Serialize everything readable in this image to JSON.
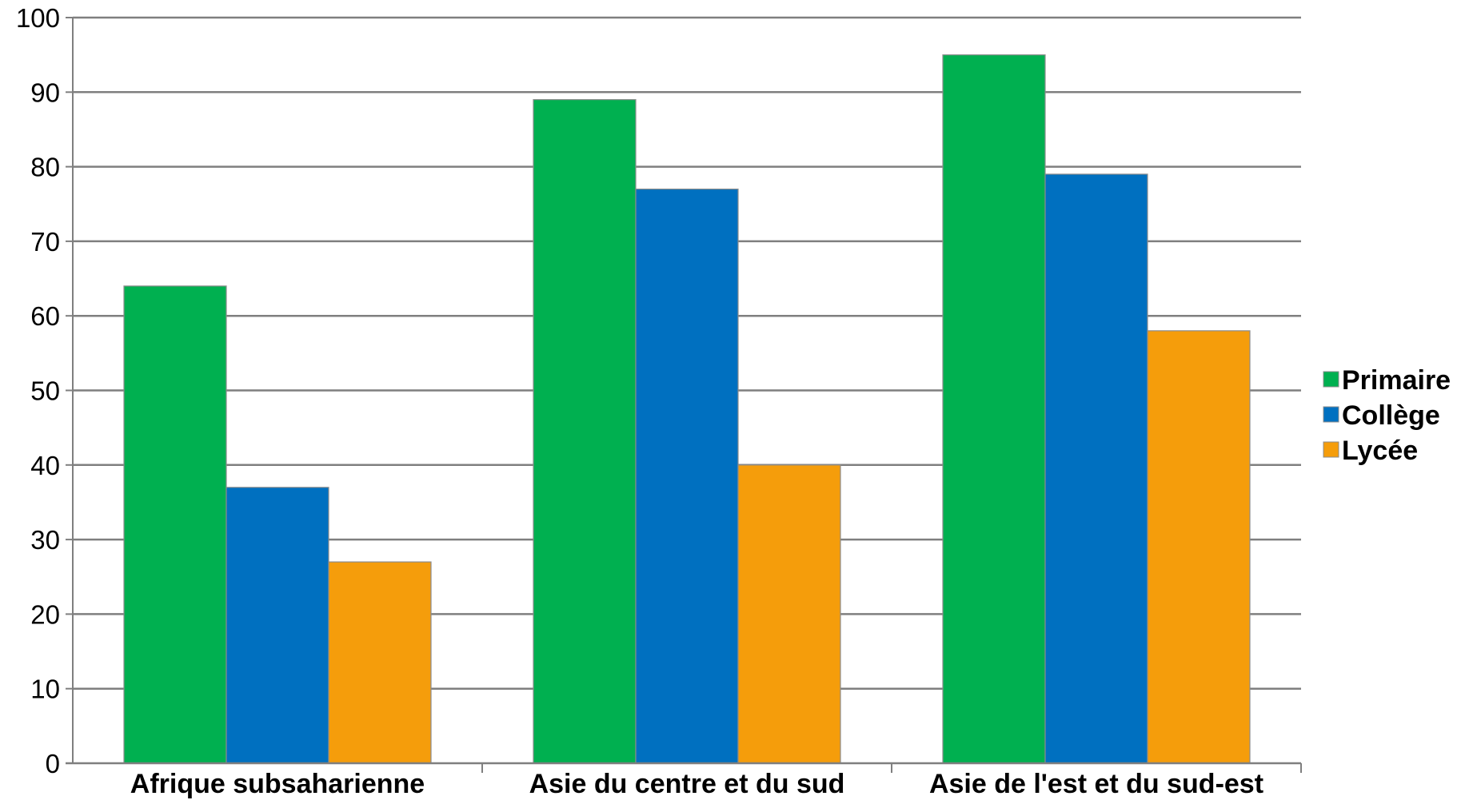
{
  "chart_data": {
    "type": "bar",
    "categories": [
      "Afrique subsaharienne",
      "Asie du centre et du sud",
      "Asie de l'est et du sud-est"
    ],
    "series": [
      {
        "name": "Primaire",
        "color": "#00b050",
        "values": [
          64,
          89,
          95
        ]
      },
      {
        "name": "Collège",
        "color": "#0070c0",
        "values": [
          37,
          77,
          79
        ]
      },
      {
        "name": "Lycée",
        "color": "#f59d0b",
        "values": [
          27,
          40,
          58
        ]
      }
    ],
    "ylim": [
      0,
      100
    ],
    "yticks": [
      0,
      10,
      20,
      30,
      40,
      50,
      60,
      70,
      80,
      90,
      100
    ],
    "grid": true,
    "legend_position": "right"
  }
}
